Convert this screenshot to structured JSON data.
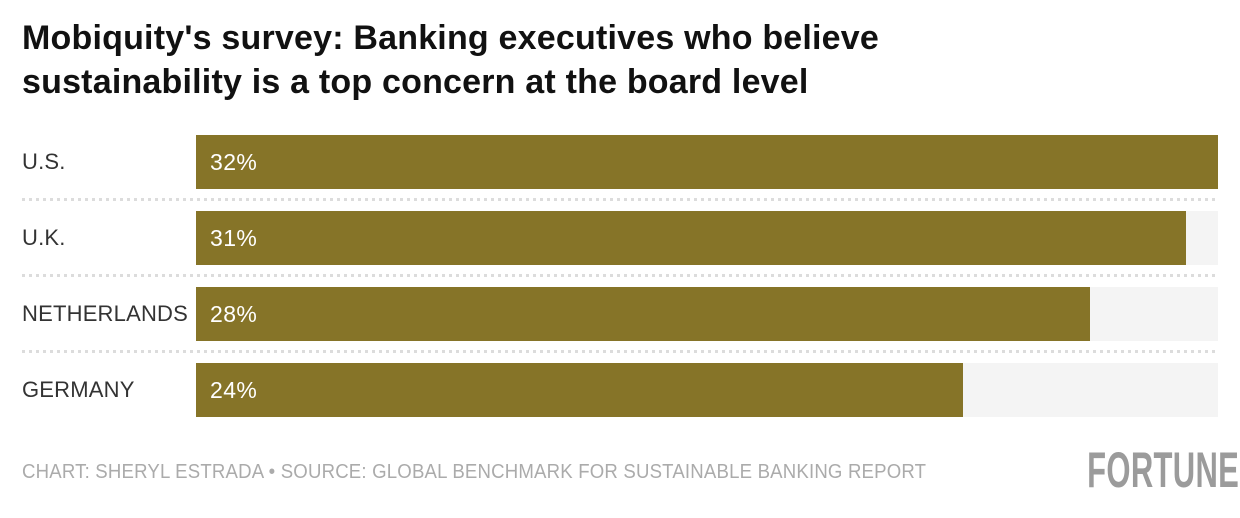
{
  "title": {
    "text": "Mobiquity's survey: Banking executives who believe sustainability is a top concern at the board level",
    "lines": [
      "Mobiquity's survey: Banking executives who believe",
      "sustainability is a top concern at the board level"
    ]
  },
  "chart_data": {
    "type": "bar",
    "orientation": "horizontal",
    "title": "Mobiquity's survey: Banking executives who believe sustainability is a top concern at the board level",
    "categories": [
      "U.S.",
      "U.K.",
      "NETHERLANDS",
      "GERMANY"
    ],
    "values": [
      32,
      31,
      28,
      24
    ],
    "value_labels": [
      "32%",
      "31%",
      "28%",
      "24%"
    ],
    "unit": "%",
    "xlim": [
      0,
      32
    ],
    "grid": "off",
    "legend": "none",
    "bar_color": "#867428",
    "track_color": "#f4f4f4",
    "separator_color": "#dcdcdc",
    "category_label_color": "#333333",
    "value_label_color": "#ffffff"
  },
  "footer": {
    "credit": "CHART: SHERYL ESTRADA • SOURCE: GLOBAL BENCHMARK FOR SUSTAINABLE BANKING REPORT",
    "brand": "FORTUNE",
    "credit_color": "#ababab",
    "brand_color": "#9b9b9b"
  }
}
